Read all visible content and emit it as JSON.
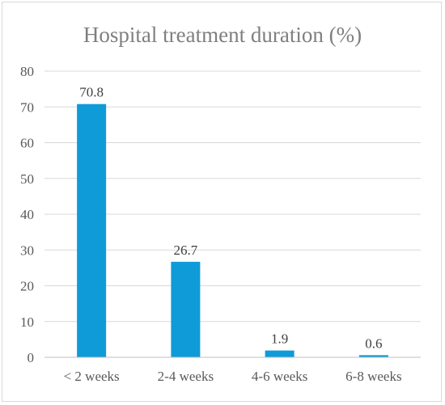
{
  "chart_data": {
    "type": "bar",
    "title": "Hospital treatment duration (%)",
    "categories": [
      "< 2 weeks",
      "2-4 weeks",
      "4-6 weeks",
      "6-8 weeks"
    ],
    "values": [
      70.8,
      26.7,
      1.9,
      0.6
    ],
    "data_labels": [
      "70.8",
      "26.7",
      "1.9",
      "0.6"
    ],
    "yticks": [
      "0",
      "10",
      "20",
      "30",
      "40",
      "50",
      "60",
      "70",
      "80"
    ],
    "ylim": [
      0,
      80
    ],
    "grid": true,
    "bar_color": "#0f9bd7",
    "xlabel": "",
    "ylabel": ""
  }
}
